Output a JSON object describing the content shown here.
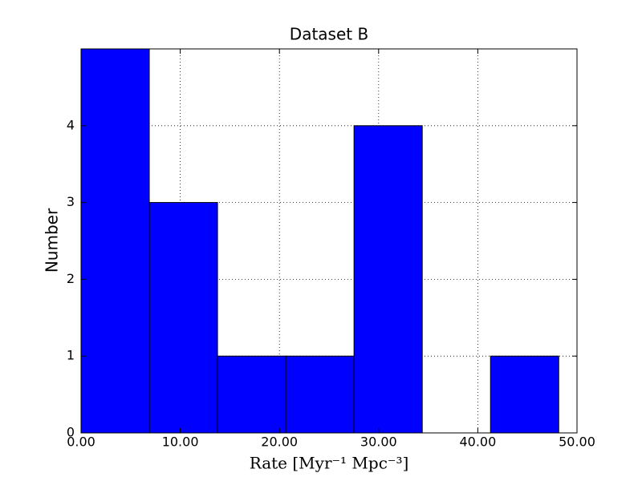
{
  "chart_data": {
    "type": "histogram",
    "title": "Dataset B",
    "x_label": "Rate [Myr⁻¹ Mpc⁻³]",
    "y_label": "Number",
    "bins": [
      0,
      6.88,
      13.76,
      20.64,
      27.52,
      34.4,
      41.28,
      48.16
    ],
    "values": [
      5,
      3,
      1,
      1,
      4,
      0,
      1
    ],
    "color": "#0000ff",
    "xlim": [
      0,
      50
    ],
    "ylim": [
      0,
      5
    ],
    "xticks": [
      {
        "value": 0,
        "label": "0.00"
      },
      {
        "value": 10,
        "label": "10.00"
      },
      {
        "value": 20,
        "label": "20.00"
      },
      {
        "value": 30,
        "label": "30.00"
      },
      {
        "value": 40,
        "label": "40.00"
      },
      {
        "value": 50,
        "label": "50.00"
      }
    ],
    "yticks": [
      0,
      1,
      2,
      3,
      4
    ],
    "grid": true
  }
}
